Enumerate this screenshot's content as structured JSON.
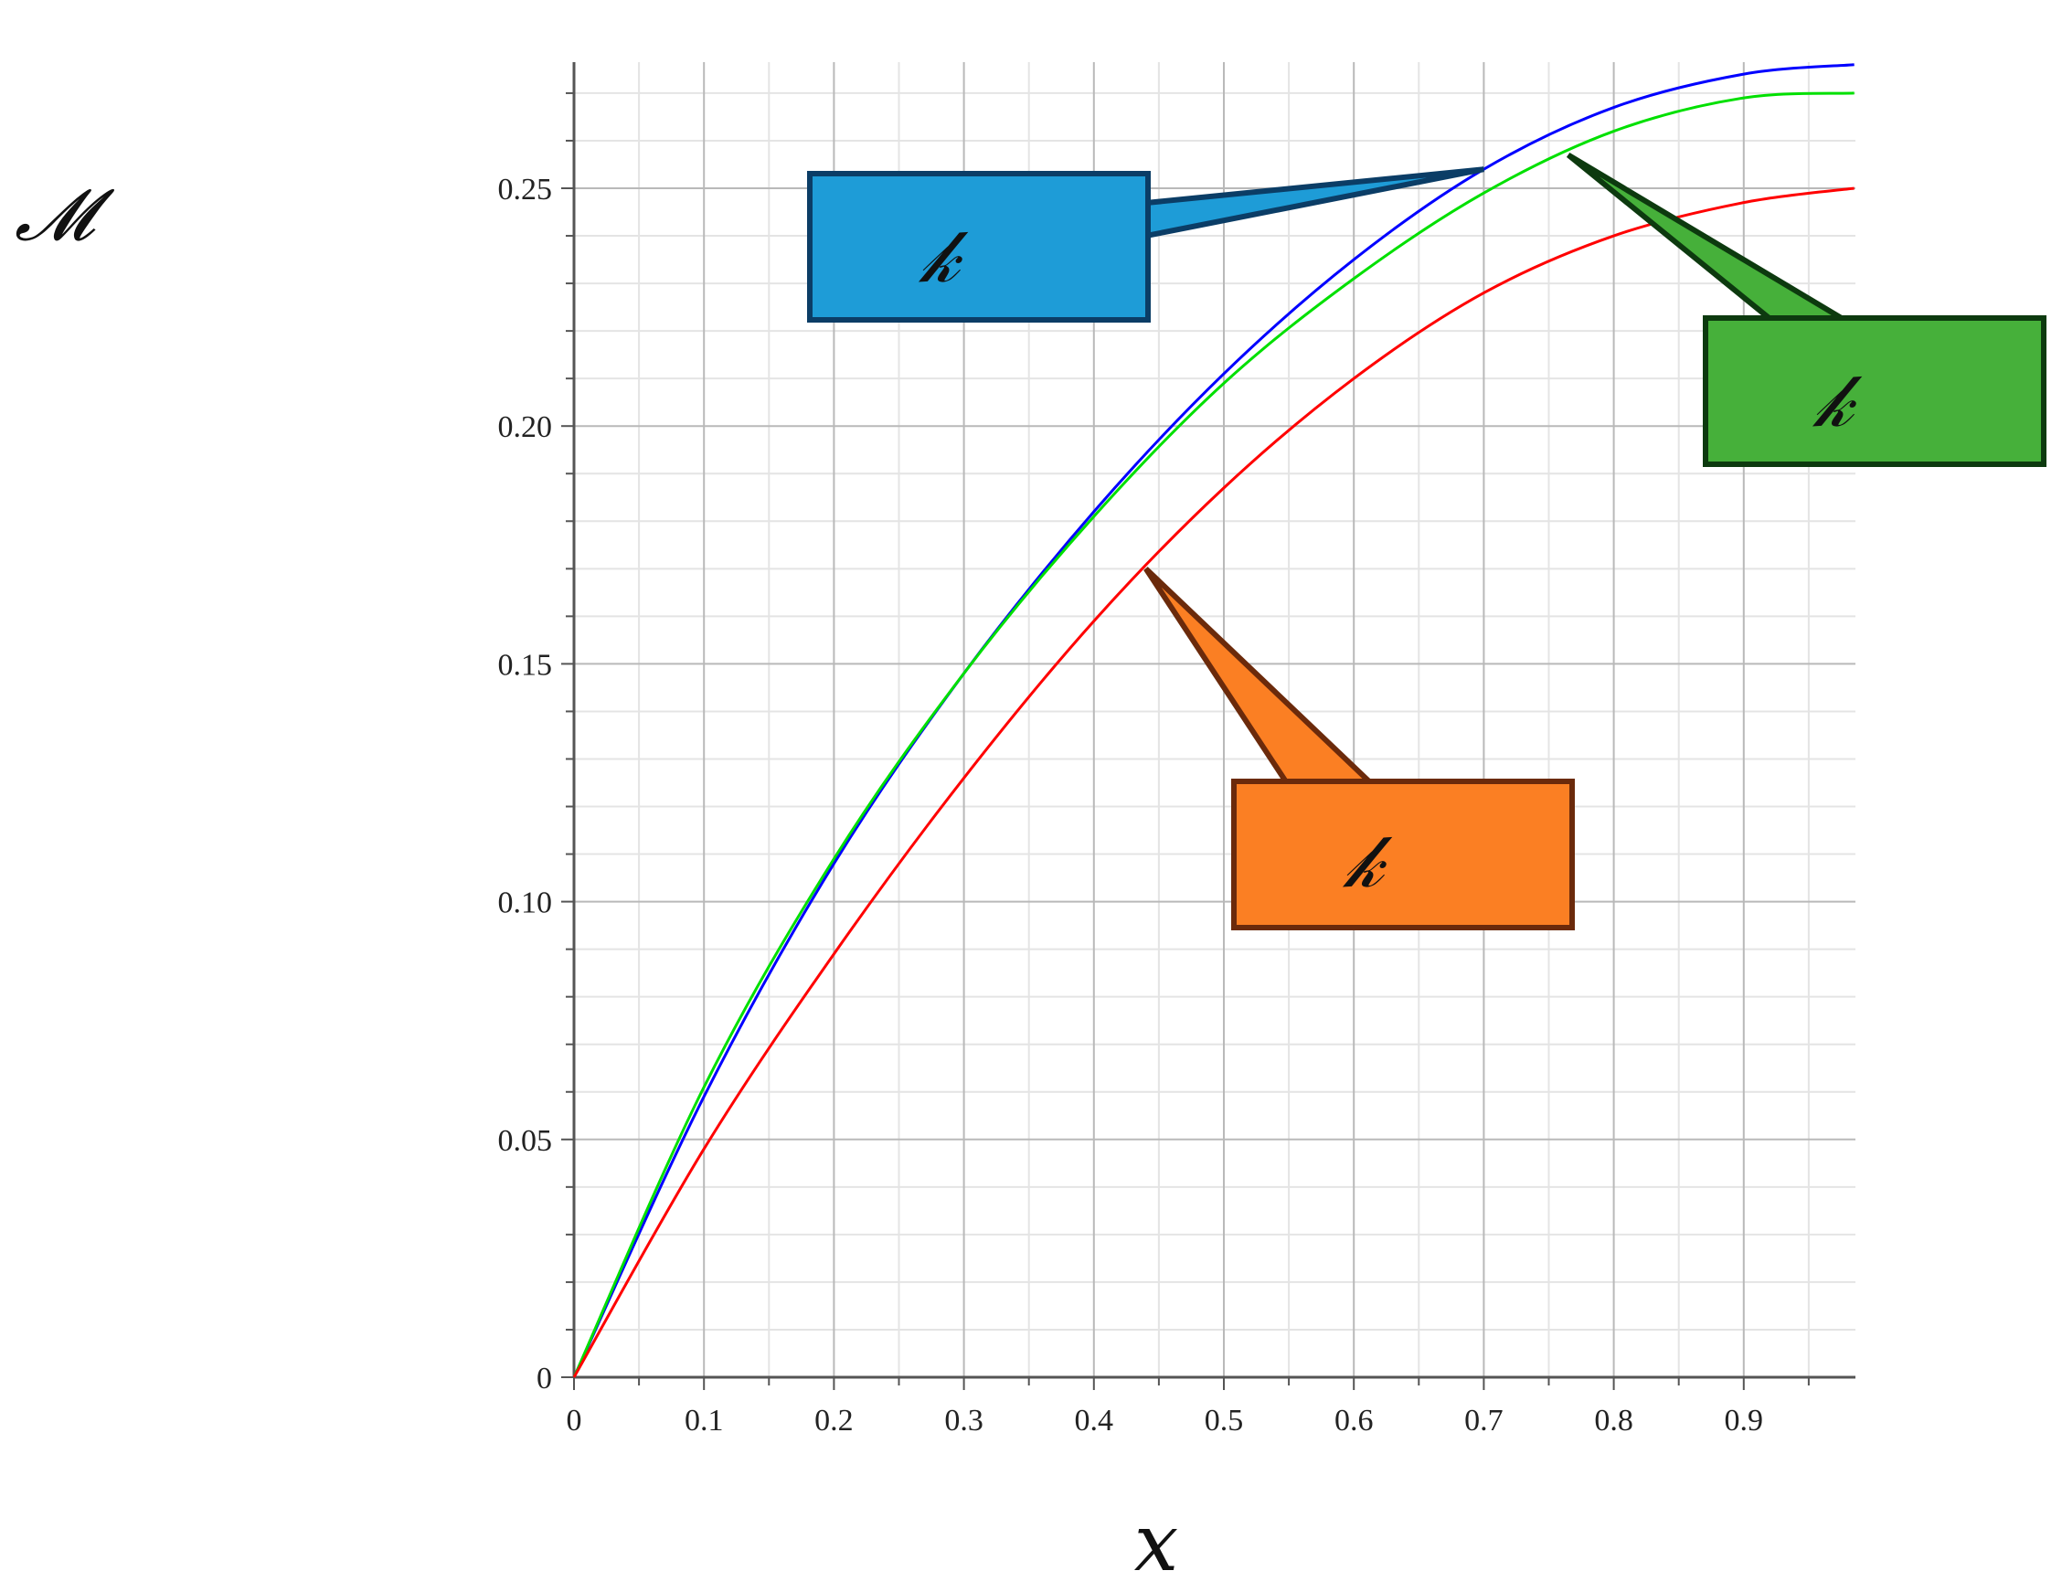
{
  "chart_data": {
    "type": "line",
    "title": "",
    "xlabel": "x",
    "ylabel": "𝓜",
    "xlim": [
      0,
      0.985
    ],
    "ylim": [
      0,
      0.275
    ],
    "x_ticks": [
      "0",
      "0.1",
      "0.2",
      "0.3",
      "0.4",
      "0.5",
      "0.6",
      "0.7",
      "0.8",
      "0.9"
    ],
    "y_ticks": [
      "0",
      "0.05",
      "0.10",
      "0.15",
      "0.20",
      "0.25"
    ],
    "grid": true,
    "series": [
      {
        "color": "#0000ff",
        "x": [
          0,
          0.1,
          0.2,
          0.3,
          0.4,
          0.5,
          0.6,
          0.7,
          0.8,
          0.9,
          0.985
        ],
        "y": [
          0,
          0.059,
          0.108,
          0.148,
          0.182,
          0.211,
          0.235,
          0.254,
          0.267,
          0.274,
          0.276
        ]
      },
      {
        "color": "#00e000",
        "x": [
          0,
          0.1,
          0.2,
          0.3,
          0.4,
          0.5,
          0.6,
          0.7,
          0.8,
          0.9,
          0.985
        ],
        "y": [
          0,
          0.061,
          0.109,
          0.148,
          0.181,
          0.209,
          0.231,
          0.249,
          0.262,
          0.269,
          0.27
        ]
      },
      {
        "color": "#ff0000",
        "x": [
          0,
          0.1,
          0.2,
          0.3,
          0.4,
          0.5,
          0.6,
          0.7,
          0.8,
          0.9,
          0.985
        ],
        "y": [
          0,
          0.048,
          0.089,
          0.126,
          0.159,
          0.187,
          0.21,
          0.228,
          0.24,
          0.247,
          0.25
        ]
      }
    ],
    "callouts": [
      {
        "text": "𝓀",
        "fill": "#1e9cd7",
        "stroke": "#0b3d66",
        "target_series": 0,
        "target": [
          0.7,
          0.254
        ]
      },
      {
        "text": "𝓀",
        "fill": "#46b03a",
        "stroke": "#0d3a0f",
        "target_series": 1,
        "target": [
          0.765,
          0.257
        ]
      },
      {
        "text": "𝓀",
        "fill": "#fb7f23",
        "stroke": "#6b2a0b",
        "target_series": 2,
        "target": [
          0.44,
          0.17
        ]
      }
    ]
  }
}
